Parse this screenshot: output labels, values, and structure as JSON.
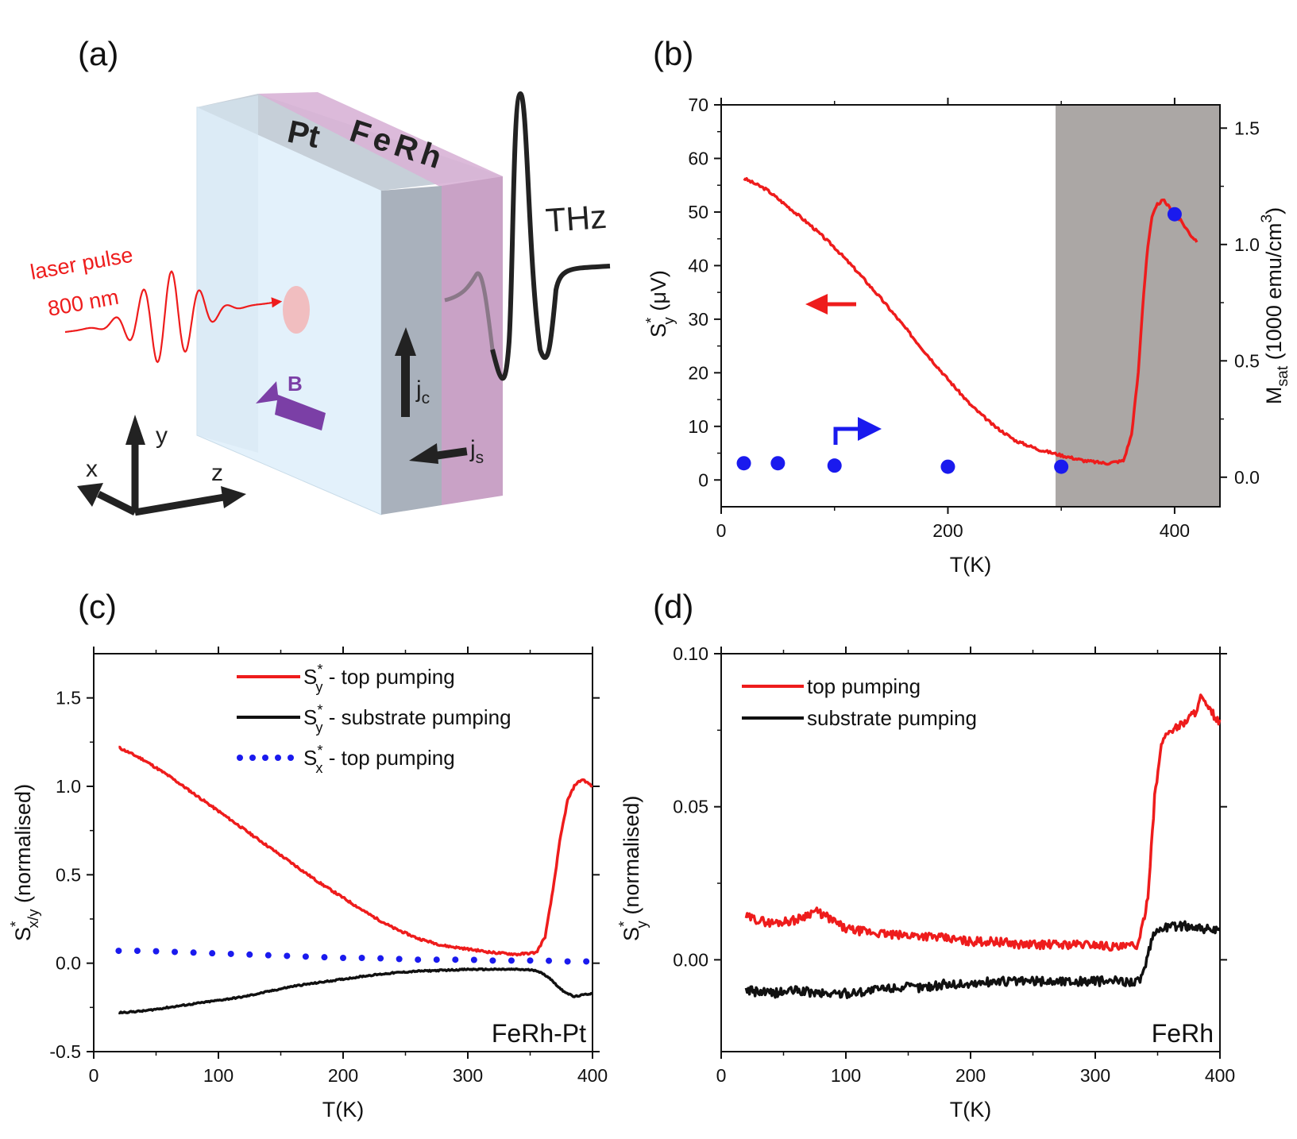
{
  "panels": {
    "a": "(a)",
    "b": "(b)",
    "c": "(c)",
    "d": "(d)"
  },
  "diagram": {
    "label_pt": "Pt",
    "label_ferh": "FeRh",
    "label_thz": "THz",
    "label_laser_line1": "laser pulse",
    "label_laser_line2": "800 nm",
    "label_b": "B",
    "label_jc": "j",
    "label_jc_sub": "c",
    "label_js": "j",
    "label_js_sub": "s",
    "axis_x": "x",
    "axis_y": "y",
    "axis_z": "z"
  },
  "colors": {
    "red": "#ee1c1c",
    "black": "#111111",
    "blue": "#1a1aee",
    "gray_region": "#aba7a5",
    "purple": "#7b3fa6"
  },
  "chart_data": [
    {
      "id": "b",
      "type": "line",
      "xlabel": "T(K)",
      "ylabel": "S_y* (μV)",
      "ylabel_right": "M_sat (1000 emu/cm^3)",
      "xlim": [
        0,
        440
      ],
      "ylim": [
        -5,
        70
      ],
      "ylim_right": [
        -0.127,
        1.6
      ],
      "xticks": [
        0,
        200,
        400
      ],
      "yticks": [
        0,
        10,
        20,
        30,
        40,
        50,
        60,
        70
      ],
      "yticks_right": [
        0.0,
        0.5,
        1.0,
        1.5
      ],
      "shaded_region": {
        "from": 295,
        "to": 440
      },
      "series": [
        {
          "name": "S_y* (left axis)",
          "color": "#ee1c1c",
          "x": [
            20,
            40,
            60,
            80,
            100,
            120,
            140,
            160,
            180,
            200,
            220,
            240,
            260,
            280,
            300,
            320,
            340,
            355,
            362,
            368,
            372,
            376,
            380,
            385,
            390,
            395,
            400,
            405,
            410,
            415,
            420
          ],
          "y": [
            56.3,
            54.2,
            50.8,
            47.3,
            43.4,
            38.9,
            34.1,
            29.0,
            23.8,
            18.8,
            14.0,
            10.2,
            7.3,
            5.7,
            4.6,
            3.6,
            3.1,
            3.6,
            8.5,
            20,
            33,
            43,
            49,
            51.5,
            52.2,
            51.0,
            49.5,
            48.5,
            47.0,
            45.5,
            44.5
          ]
        },
        {
          "name": "M_sat (right axis)",
          "color": "#1a1aee",
          "marker": "circle",
          "axis": "right",
          "x": [
            20,
            50,
            100,
            200,
            300,
            400
          ],
          "y": [
            0.06,
            0.06,
            0.05,
            0.045,
            0.045,
            1.13
          ]
        }
      ],
      "annotations": [
        "left arrow (red) → left axis",
        "right arrow (blue) → right axis"
      ]
    },
    {
      "id": "c",
      "type": "line",
      "xlabel": "T(K)",
      "ylabel": "S_x/y* (normalised)",
      "xlim": [
        0,
        400
      ],
      "ylim": [
        -0.5,
        1.75
      ],
      "xticks": [
        0,
        100,
        200,
        300,
        400
      ],
      "yticks": [
        -0.5,
        0.0,
        0.5,
        1.0,
        1.5
      ],
      "sample_label": "FeRh-Pt",
      "legend": [
        {
          "main": "S",
          "sub": "y",
          "rest": " - top pumping",
          "style": "line",
          "color": "#ee1c1c"
        },
        {
          "main": "S",
          "sub": "y",
          "rest": " - substrate pumping",
          "style": "line",
          "color": "#111111"
        },
        {
          "main": "S",
          "sub": "x",
          "rest": " - top pumping",
          "style": "dots",
          "color": "#1a1aee"
        }
      ],
      "series": [
        {
          "name": "S_y* - top pumping",
          "color": "#ee1c1c",
          "x": [
            20,
            40,
            60,
            80,
            100,
            120,
            140,
            160,
            180,
            200,
            220,
            240,
            260,
            280,
            300,
            320,
            340,
            355,
            362,
            368,
            374,
            380,
            386,
            392,
            396,
            400
          ],
          "y": [
            1.22,
            1.15,
            1.06,
            0.96,
            0.86,
            0.76,
            0.66,
            0.56,
            0.46,
            0.37,
            0.28,
            0.2,
            0.14,
            0.1,
            0.08,
            0.06,
            0.05,
            0.06,
            0.15,
            0.4,
            0.7,
            0.92,
            1.01,
            1.04,
            1.02,
            1.0
          ]
        },
        {
          "name": "S_y* - substrate pumping",
          "color": "#111111",
          "x": [
            20,
            40,
            60,
            80,
            100,
            120,
            140,
            160,
            180,
            200,
            220,
            240,
            260,
            280,
            300,
            320,
            340,
            355,
            365,
            375,
            385,
            392,
            400
          ],
          "y": [
            -0.28,
            -0.27,
            -0.25,
            -0.23,
            -0.21,
            -0.19,
            -0.16,
            -0.13,
            -0.11,
            -0.09,
            -0.07,
            -0.055,
            -0.045,
            -0.04,
            -0.035,
            -0.035,
            -0.035,
            -0.04,
            -0.08,
            -0.15,
            -0.19,
            -0.18,
            -0.17
          ]
        },
        {
          "name": "S_x* - top pumping",
          "color": "#1a1aee",
          "style": "dots",
          "x": [
            20,
            40,
            60,
            80,
            100,
            120,
            140,
            160,
            180,
            200,
            220,
            240,
            260,
            280,
            300,
            320,
            340,
            360,
            380,
            395
          ],
          "y": [
            0.07,
            0.07,
            0.065,
            0.06,
            0.055,
            0.05,
            0.045,
            0.04,
            0.035,
            0.03,
            0.03,
            0.025,
            0.02,
            0.02,
            0.02,
            0.015,
            0.015,
            0.015,
            0.01,
            0.01
          ]
        }
      ]
    },
    {
      "id": "d",
      "type": "line",
      "xlabel": "T(K)",
      "ylabel": "S_y* (normalised)",
      "xlim": [
        0,
        400
      ],
      "ylim": [
        -0.03,
        0.1
      ],
      "xticks": [
        0,
        100,
        200,
        300,
        400
      ],
      "yticks": [
        0.0,
        0.05,
        0.1
      ],
      "ytick_labels": [
        "0.00",
        "0.05",
        "0.10"
      ],
      "sample_label": "FeRh",
      "legend": [
        {
          "text": "top pumping",
          "color": "#ee1c1c"
        },
        {
          "text": "substrate pumping",
          "color": "#111111"
        }
      ],
      "series": [
        {
          "name": "top pumping",
          "color": "#ee1c1c",
          "x": [
            20,
            40,
            60,
            75,
            85,
            100,
            120,
            140,
            160,
            180,
            200,
            220,
            240,
            260,
            280,
            300,
            320,
            335,
            342,
            348,
            354,
            360,
            370,
            380,
            385,
            390,
            395,
            400
          ],
          "y": [
            0.014,
            0.012,
            0.013,
            0.016,
            0.014,
            0.01,
            0.009,
            0.008,
            0.008,
            0.007,
            0.006,
            0.006,
            0.005,
            0.005,
            0.005,
            0.005,
            0.004,
            0.005,
            0.02,
            0.055,
            0.072,
            0.075,
            0.077,
            0.081,
            0.086,
            0.082,
            0.08,
            0.077
          ]
        },
        {
          "name": "substrate pumping",
          "color": "#111111",
          "x": [
            20,
            40,
            60,
            80,
            100,
            120,
            140,
            160,
            180,
            200,
            220,
            240,
            260,
            280,
            300,
            320,
            335,
            340,
            345,
            350,
            360,
            370,
            380,
            390,
            400
          ],
          "y": [
            -0.01,
            -0.011,
            -0.01,
            -0.011,
            -0.011,
            -0.01,
            -0.009,
            -0.009,
            -0.008,
            -0.008,
            -0.007,
            -0.007,
            -0.007,
            -0.007,
            -0.007,
            -0.007,
            -0.007,
            -0.003,
            0.006,
            0.01,
            0.011,
            0.011,
            0.011,
            0.01,
            0.009
          ]
        }
      ]
    }
  ]
}
